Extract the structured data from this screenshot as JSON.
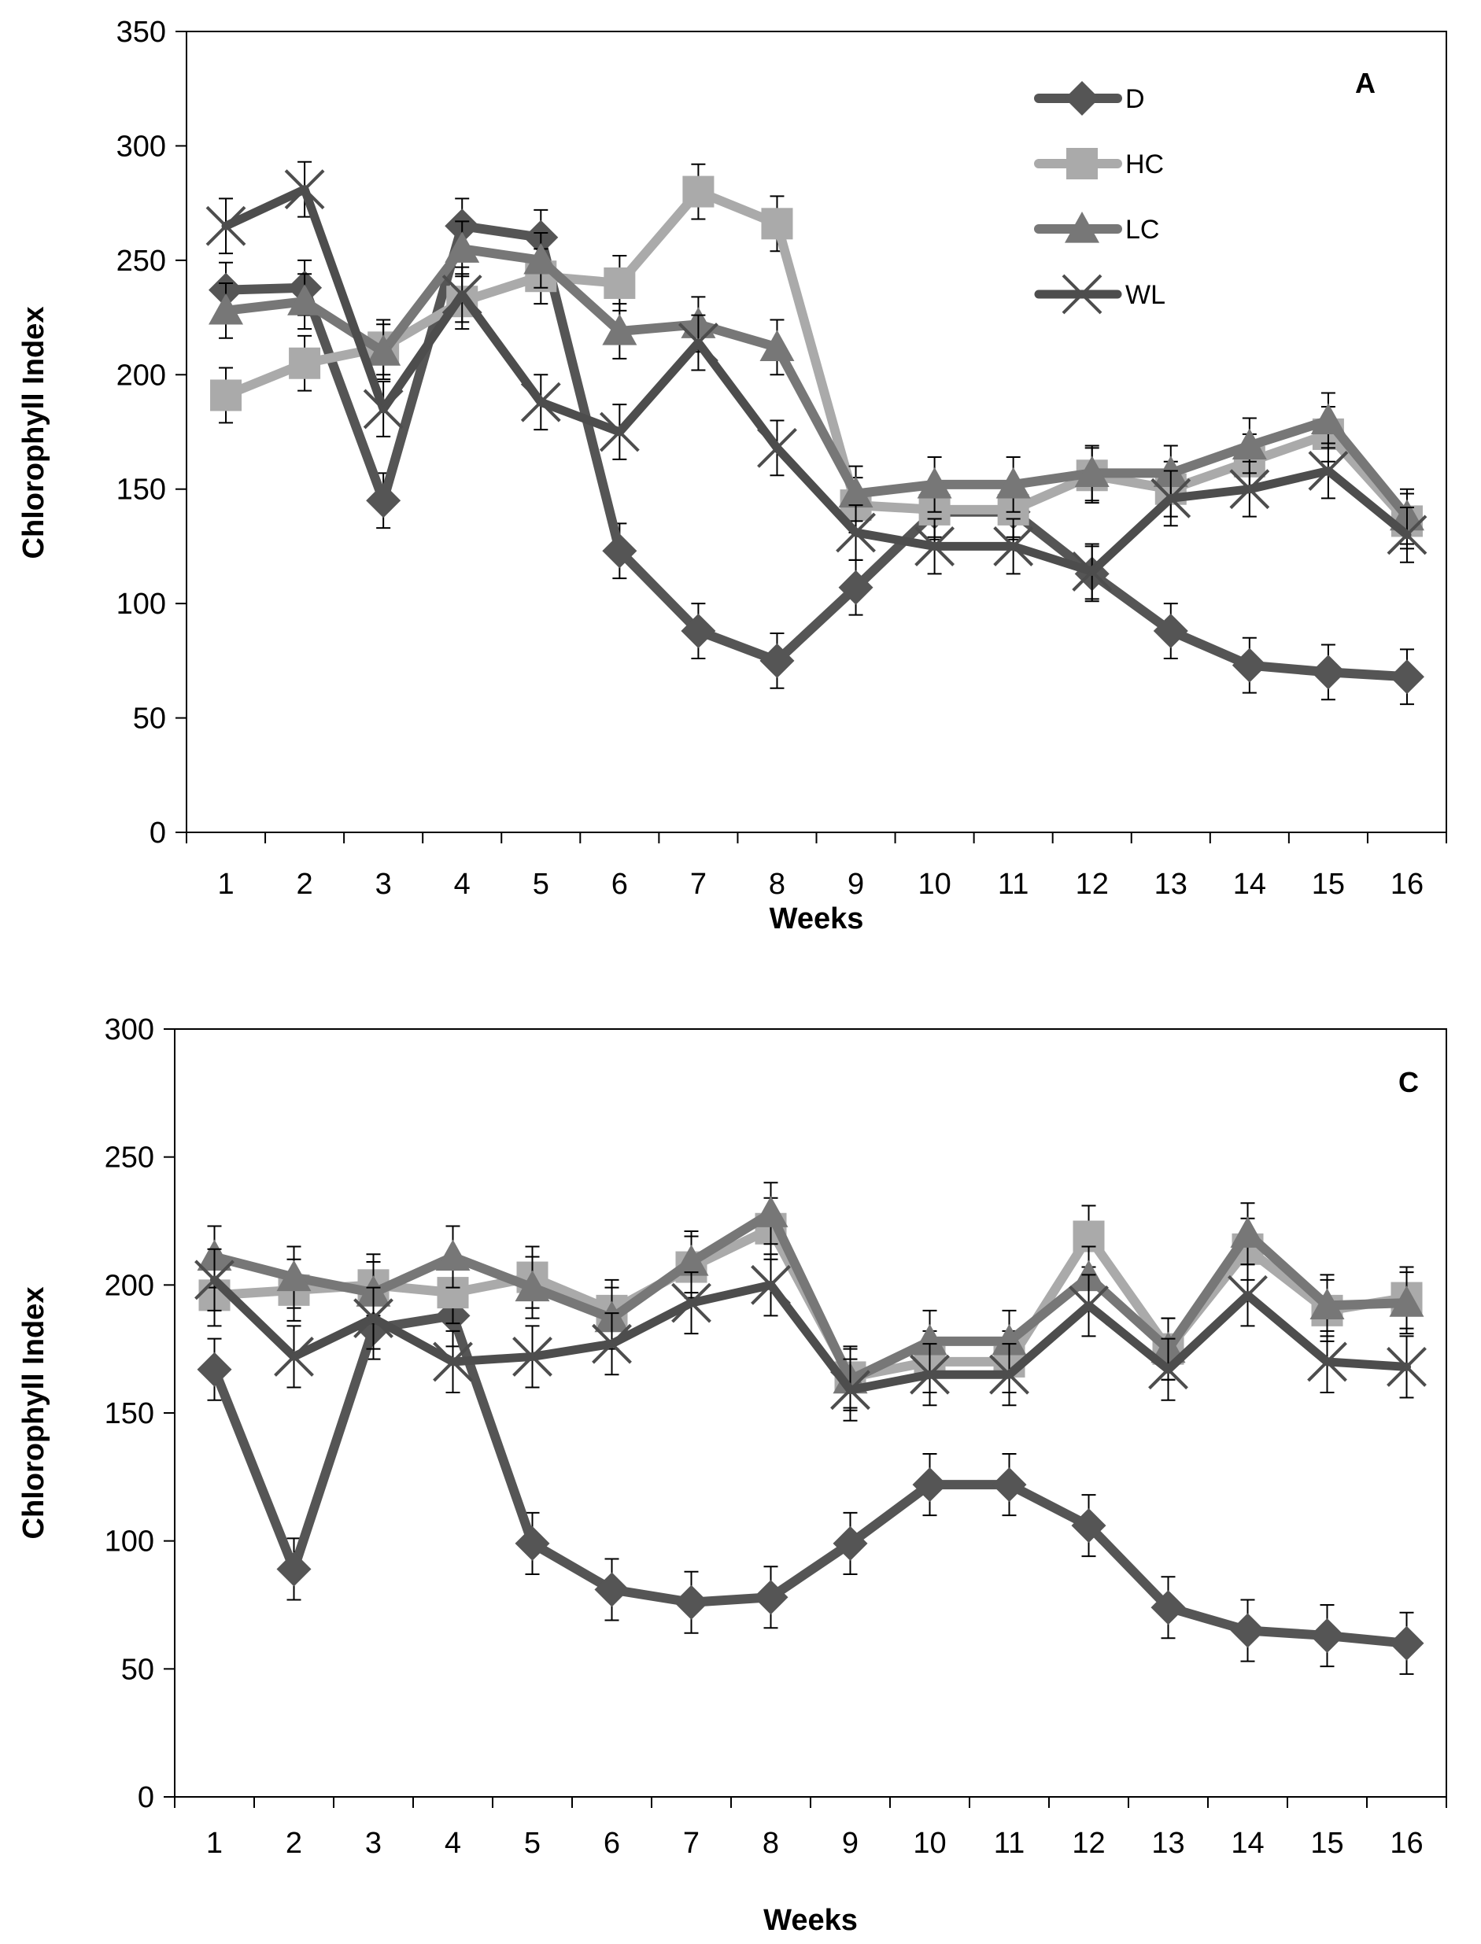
{
  "legend": {
    "items": [
      {
        "key": "D",
        "label": "D",
        "color": "#555555",
        "marker": "diamond"
      },
      {
        "key": "HC",
        "label": "HC",
        "color": "#aaaaaa",
        "marker": "square"
      },
      {
        "key": "LC",
        "label": "LC",
        "color": "#777777",
        "marker": "triangle"
      },
      {
        "key": "WL",
        "label": "WL",
        "color": "#4d4d4d",
        "marker": "cross"
      }
    ]
  },
  "chart_data": [
    {
      "type": "line",
      "panel_label": "A",
      "xlabel": "Weeks",
      "ylabel": "Chlorophyll Index",
      "ylim": [
        0,
        350
      ],
      "yticks": [
        0,
        50,
        100,
        150,
        200,
        250,
        300,
        350
      ],
      "categories": [
        "1",
        "2",
        "3",
        "4",
        "5",
        "6",
        "7",
        "8",
        "9",
        "10",
        "11",
        "12",
        "13",
        "14",
        "15",
        "16"
      ],
      "legend_position": "top-right",
      "series": [
        {
          "name": "D",
          "values": [
            237,
            238,
            145,
            265,
            260,
            123,
            88,
            75,
            107,
            140,
            140,
            113,
            88,
            73,
            70,
            68
          ],
          "error": [
            12,
            12,
            12,
            12,
            12,
            12,
            12,
            12,
            12,
            12,
            12,
            12,
            12,
            12,
            12,
            12
          ]
        },
        {
          "name": "HC",
          "values": [
            191,
            205,
            212,
            232,
            243,
            240,
            280,
            266,
            143,
            141,
            141,
            156,
            150,
            162,
            174,
            136
          ],
          "error": [
            12,
            12,
            12,
            12,
            12,
            12,
            12,
            12,
            12,
            12,
            12,
            12,
            12,
            12,
            12,
            12
          ]
        },
        {
          "name": "LC",
          "values": [
            228,
            232,
            210,
            255,
            250,
            219,
            222,
            212,
            148,
            152,
            152,
            157,
            157,
            169,
            180,
            138
          ],
          "error": [
            12,
            12,
            12,
            12,
            12,
            12,
            12,
            12,
            12,
            12,
            12,
            12,
            12,
            12,
            12,
            12
          ]
        },
        {
          "name": "WL",
          "values": [
            265,
            281,
            185,
            235,
            188,
            175,
            214,
            168,
            131,
            125,
            125,
            114,
            146,
            150,
            158,
            130
          ],
          "error": [
            12,
            12,
            12,
            12,
            12,
            12,
            12,
            12,
            12,
            12,
            12,
            12,
            12,
            12,
            12,
            12
          ]
        }
      ]
    },
    {
      "type": "line",
      "panel_label": "C",
      "xlabel": "Weeks",
      "ylabel": "Chlorophyll Index",
      "ylim": [
        0,
        300
      ],
      "yticks": [
        0,
        50,
        100,
        150,
        200,
        250,
        300
      ],
      "categories": [
        "1",
        "2",
        "3",
        "4",
        "5",
        "6",
        "7",
        "8",
        "9",
        "10",
        "11",
        "12",
        "13",
        "14",
        "15",
        "16"
      ],
      "series": [
        {
          "name": "D",
          "values": [
            167,
            89,
            183,
            188,
            99,
            81,
            76,
            78,
            99,
            122,
            122,
            106,
            74,
            65,
            63,
            60
          ],
          "error": [
            12,
            12,
            12,
            12,
            12,
            12,
            12,
            12,
            12,
            12,
            12,
            12,
            12,
            12,
            12,
            12
          ]
        },
        {
          "name": "HC",
          "values": [
            196,
            198,
            200,
            197,
            203,
            190,
            207,
            222,
            164,
            170,
            170,
            219,
            175,
            214,
            190,
            195
          ],
          "error": [
            12,
            12,
            12,
            12,
            12,
            12,
            12,
            12,
            12,
            12,
            12,
            12,
            12,
            12,
            12,
            12
          ]
        },
        {
          "name": "LC",
          "values": [
            211,
            203,
            197,
            211,
            199,
            187,
            209,
            228,
            163,
            178,
            178,
            203,
            175,
            220,
            192,
            193
          ],
          "error": [
            12,
            12,
            12,
            12,
            12,
            12,
            12,
            12,
            12,
            12,
            12,
            12,
            12,
            12,
            12,
            12
          ]
        },
        {
          "name": "WL",
          "values": [
            202,
            172,
            187,
            170,
            172,
            177,
            193,
            200,
            159,
            165,
            165,
            192,
            167,
            196,
            170,
            168
          ],
          "error": [
            12,
            12,
            12,
            12,
            12,
            12,
            12,
            12,
            12,
            12,
            12,
            12,
            12,
            12,
            12,
            12
          ]
        }
      ]
    }
  ]
}
